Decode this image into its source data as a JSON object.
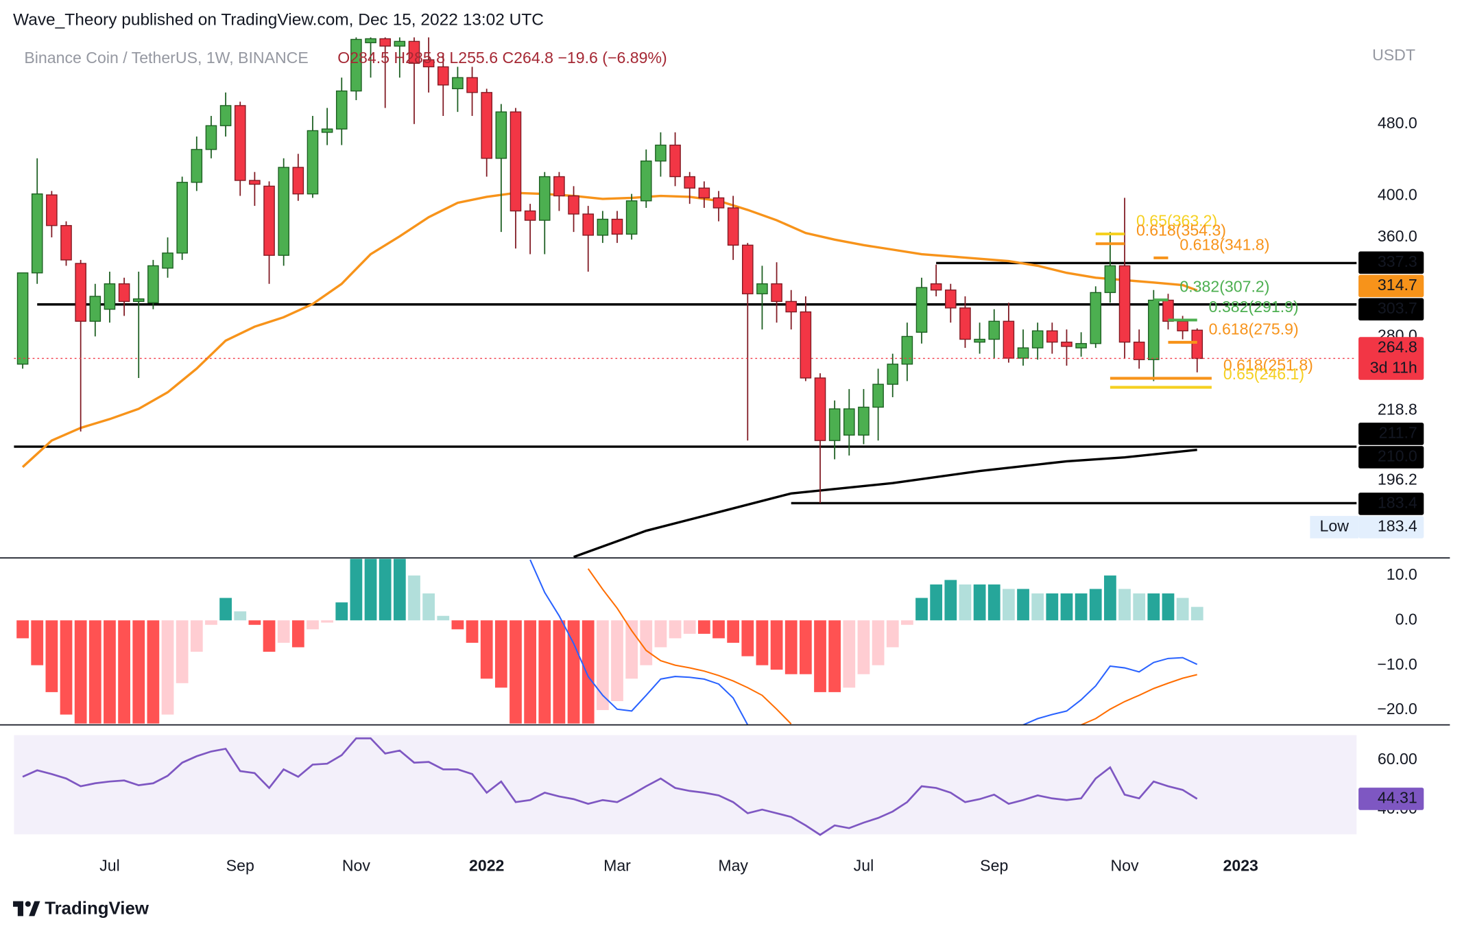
{
  "header": {
    "publisher": "Wave_Theory published on TradingView.com, Dec 15, 2022 13:02 UTC",
    "symbol": "Binance Coin / TetherUS, 1W, BINANCE",
    "ohlc": "O284.5  H285.8  L255.6  C264.8  −19.6 (−6.89%)",
    "currency": "USDT",
    "footer": "TradingView"
  },
  "chart_data": [
    {
      "type": "candlestick",
      "log": true,
      "xlim": [
        -0.6,
        92
      ],
      "xticks": [
        {
          "value": 6,
          "label": "Jul"
        },
        {
          "value": 15,
          "label": "Sep"
        },
        {
          "value": 23,
          "label": "Nov"
        },
        {
          "value": 32,
          "label": "2022"
        },
        {
          "value": 41,
          "label": "Mar"
        },
        {
          "value": 49,
          "label": "May"
        },
        {
          "value": 58,
          "label": "Jul"
        },
        {
          "value": 67,
          "label": "Sep"
        },
        {
          "value": 76,
          "label": "Nov"
        },
        {
          "value": 84,
          "label": "2023"
        }
      ],
      "ylim": [
        160,
        598
      ],
      "yticks": [
        {
          "value": 480,
          "label": "480.0"
        },
        {
          "value": 400,
          "label": "400.0"
        },
        {
          "value": 360,
          "label": "360.0"
        },
        {
          "value": 280,
          "label": "280.0"
        }
      ],
      "up_color": "#4caf50",
      "down_color": "#f23645",
      "open": [
        261,
        329,
        401,
        371,
        337,
        291,
        300,
        320,
        306,
        305,
        333,
        346,
        414,
        450,
        478,
        503,
        416,
        410,
        344,
        430,
        402,
        470,
        474,
        522,
        590,
        596,
        585,
        592,
        565,
        555,
        525,
        540,
        520,
        440,
        495,
        385,
        376,
        420,
        400,
        382,
        362,
        377,
        363,
        395,
        437,
        455,
        420,
        408,
        398,
        388,
        353,
        312,
        320,
        306,
        298,
        252,
        215,
        218,
        218,
        234,
        248,
        261,
        283,
        320,
        315,
        301,
        276,
        278,
        291,
        265,
        272,
        284,
        276,
        272,
        275,
        313,
        335,
        276,
        264,
        307,
        291,
        284.5
      ],
      "high": [
        329,
        440,
        405,
        375,
        340,
        320,
        330,
        325,
        330,
        340,
        360,
        420,
        465,
        490,
        520,
        508,
        425,
        415,
        440,
        445,
        490,
        500,
        540,
        598,
        598,
        598,
        598,
        598,
        598,
        575,
        555,
        555,
        525,
        505,
        500,
        392,
        425,
        425,
        410,
        390,
        385,
        385,
        402,
        450,
        470,
        470,
        425,
        415,
        405,
        400,
        355,
        335,
        338,
        315,
        310,
        255,
        238,
        245,
        245,
        258,
        268,
        290,
        325,
        336,
        320,
        310,
        290,
        300,
        305,
        285,
        290,
        290,
        285,
        283,
        318,
        365,
        398,
        285,
        315,
        312,
        295,
        285.8
      ],
      "low": [
        258,
        320,
        360,
        335,
        220,
        280,
        290,
        295,
        252,
        300,
        325,
        340,
        405,
        440,
        465,
        400,
        390,
        320,
        335,
        395,
        398,
        455,
        455,
        510,
        540,
        500,
        540,
        480,
        520,
        490,
        495,
        490,
        420,
        365,
        350,
        345,
        345,
        385,
        365,
        330,
        355,
        355,
        358,
        388,
        420,
        410,
        392,
        388,
        375,
        340,
        215,
        285,
        290,
        285,
        250,
        183.4,
        205,
        207,
        213,
        215,
        240,
        250,
        275,
        310,
        290,
        272,
        268,
        265,
        262,
        260,
        264,
        268,
        260,
        266,
        272,
        305,
        265,
        258,
        250,
        285,
        278,
        255.6
      ],
      "close": [
        329,
        402,
        371,
        340,
        291,
        310,
        320,
        306,
        308,
        335,
        346,
        414,
        450,
        478,
        503,
        416,
        412,
        344,
        430,
        402,
        472,
        474,
        522,
        595,
        596,
        585,
        592,
        560,
        555,
        530,
        540,
        520,
        440,
        495,
        385,
        376,
        420,
        400,
        382,
        362,
        377,
        363,
        395,
        437,
        455,
        420,
        408,
        398,
        388,
        353,
        312,
        320,
        306,
        298,
        252,
        215,
        233,
        233,
        234,
        248,
        261,
        280,
        317,
        315,
        301,
        278,
        278,
        291,
        265,
        272,
        284,
        276,
        273,
        275,
        313,
        335,
        276,
        264,
        307,
        291,
        284,
        264.8
      ],
      "ma": [
        {
          "color": "#f7931a",
          "x": [
            0,
            2,
            4,
            6,
            8,
            10,
            12,
            14,
            16,
            18,
            20,
            22,
            24,
            26,
            28,
            30,
            32,
            34,
            36,
            38,
            40,
            42,
            44,
            46,
            48,
            50,
            52,
            54,
            56,
            58,
            60,
            62,
            64,
            66,
            68,
            70,
            72,
            74,
            76,
            78,
            80,
            81
          ],
          "values": [
            201,
            215,
            222,
            227,
            233,
            243,
            258,
            277,
            287,
            294,
            304,
            320,
            345,
            361,
            379,
            393,
            399,
            403,
            402,
            400,
            397,
            398,
            400,
            399,
            395,
            386,
            376,
            364,
            358,
            353,
            349,
            345,
            343,
            341,
            339,
            335,
            329,
            325,
            323,
            321,
            319,
            314.7
          ]
        },
        {
          "color": "#000000",
          "x": [
            38,
            43,
            49,
            53,
            60,
            66,
            72,
            76,
            81
          ],
          "values": [
            160,
            171,
            181,
            188,
            193,
            199,
            204,
            206,
            210.0
          ]
        }
      ],
      "levels": [
        {
          "value": 337.3,
          "from": 63
        },
        {
          "value": 303.7,
          "from": 1
        },
        {
          "value": 211.7,
          "from": -0.6
        },
        {
          "value": 183.4,
          "from": 53
        }
      ],
      "annotations": [
        {
          "text": "0.65(363.2)",
          "value": 363.2,
          "from": 74,
          "to": 76,
          "color": "#f5d020"
        },
        {
          "text": "0.618(354.3)",
          "value": 354.3,
          "from": 74,
          "to": 76,
          "color": "#f7931a"
        },
        {
          "text": "0.618(341.8)",
          "value": 341.8,
          "from": 78,
          "to": 79,
          "color": "#f7931a"
        },
        {
          "text": "0.382(307.2)",
          "value": 307.2,
          "from": 78,
          "to": 79,
          "color": "#4caf50"
        },
        {
          "text": "0.382(291.9)",
          "value": 291.9,
          "from": 79,
          "to": 81,
          "color": "#4caf50"
        },
        {
          "text": "0.618(275.9)",
          "value": 275.9,
          "from": 79,
          "to": 81,
          "color": "#f7931a"
        },
        {
          "text": "0.618(251.8)",
          "value": 251.8,
          "from": 75,
          "to": 82,
          "color": "#f7931a"
        },
        {
          "text": "0.65(246.1)",
          "value": 246.1,
          "from": 75,
          "to": 82,
          "color": "#f5d020"
        }
      ],
      "price_labels": [
        {
          "value": 337.3,
          "label": "337.3",
          "color": "#000000",
          "text_color": "#ffffff"
        },
        {
          "value": 314.7,
          "label": "314.7",
          "color": "#f7931a",
          "text_color": "#ffffff"
        },
        {
          "value": 303.7,
          "label": "303.7",
          "color": "#000000",
          "text_color": "#ffffff"
        },
        {
          "value": 264.8,
          "label": "264.8",
          "sub": "3d 11h",
          "color": "#f23645",
          "text_color": "#ffffff"
        },
        {
          "value": 218.8,
          "label": "218.8",
          "text_color": "#131722"
        },
        {
          "value": 211.7,
          "label": "211.7",
          "color": "#000000",
          "text_color": "#ffffff"
        },
        {
          "value": 210.0,
          "label": "210.0",
          "color": "#000000",
          "text_color": "#ffffff"
        },
        {
          "value": 196.2,
          "label": "196.2",
          "text_color": "#131722"
        },
        {
          "value": 183.4,
          "label": "183.4",
          "color": "#000000",
          "text_color": "#ffffff"
        },
        {
          "value": 183.4,
          "label": "183.4",
          "prefix": "Low",
          "color": "#e3effd",
          "text_color": "#131722"
        }
      ]
    },
    {
      "type": "macd",
      "ylim": [
        -23.3,
        13.5
      ],
      "yticks": [
        {
          "value": 10,
          "label": "10.0"
        },
        {
          "value": 0,
          "label": "0.0"
        },
        {
          "value": -10,
          "label": "−10.0"
        },
        {
          "value": -20,
          "label": "−20.0"
        }
      ],
      "hist_colors": [
        "#26a69a",
        "#b2dfdb",
        "#ff5252",
        "#ffcdd2"
      ],
      "histogram": [
        -4,
        -10,
        -16,
        -21,
        -23,
        -23,
        -23,
        -23,
        -23,
        -23,
        -21,
        -14,
        -7,
        -1,
        5,
        2,
        -1,
        -7,
        -5,
        -6,
        -2,
        -0.5,
        4,
        14,
        14,
        14,
        14,
        10,
        6,
        1,
        -2,
        -5,
        -13,
        -15,
        -23,
        -23,
        -23,
        -23,
        -23,
        -23,
        -20,
        -18,
        -13,
        -10,
        -6,
        -4,
        -3,
        -3,
        -4,
        -5,
        -8,
        -10,
        -11,
        -12,
        -12,
        -16,
        -16,
        -15,
        -12,
        -10,
        -6,
        -1,
        5,
        8,
        9,
        8,
        8,
        8,
        7,
        7,
        6,
        6,
        6,
        6,
        7,
        10,
        7,
        6,
        6,
        6,
        5,
        3
      ],
      "series": [
        {
          "color": "#2962ff",
          "values": [
            null,
            null,
            null,
            null,
            null,
            null,
            null,
            null,
            null,
            null,
            null,
            null,
            null,
            null,
            null,
            null,
            null,
            null,
            null,
            null,
            null,
            null,
            null,
            null,
            null,
            null,
            null,
            null,
            null,
            null,
            null,
            null,
            null,
            null,
            null,
            13.5,
            6.2,
            1,
            -5.2,
            -12.5,
            -16.7,
            -19.8,
            -20.2,
            -16.7,
            -13.1,
            -12.5,
            -12.7,
            -13.1,
            -14.2,
            -17.3,
            -23.3,
            null,
            null,
            null,
            null,
            null,
            null,
            null,
            null,
            null,
            null,
            null,
            null,
            null,
            null,
            null,
            null,
            null,
            null,
            -23.3,
            -21.9,
            -21,
            -20.2,
            -17.7,
            -14.6,
            -10.2,
            -10.6,
            -11.5,
            -9.4,
            -8.5,
            -8.3,
            -9.8
          ]
        },
        {
          "color": "#ff6d00",
          "values": [
            null,
            null,
            null,
            null,
            null,
            null,
            null,
            null,
            null,
            null,
            null,
            null,
            null,
            null,
            null,
            null,
            null,
            null,
            null,
            null,
            null,
            null,
            null,
            null,
            null,
            null,
            null,
            null,
            null,
            null,
            null,
            null,
            null,
            null,
            null,
            null,
            null,
            null,
            null,
            11.5,
            6.9,
            2.7,
            -2.3,
            -6.7,
            -9,
            -10,
            -10.6,
            -11.3,
            -12.3,
            -13.5,
            -15,
            -16.7,
            -19.8,
            -23.1,
            null,
            null,
            null,
            null,
            null,
            null,
            null,
            null,
            null,
            null,
            null,
            null,
            null,
            null,
            null,
            null,
            null,
            null,
            null,
            -23.3,
            -21.9,
            -19.8,
            -18.1,
            -16.7,
            -15.2,
            -14,
            -12.9,
            -12.1
          ]
        }
      ]
    },
    {
      "type": "line",
      "ylim": [
        29,
        73
      ],
      "yticks": [
        {
          "value": 60,
          "label": "60.00"
        },
        {
          "value": 40,
          "label": "40.00"
        }
      ],
      "band": [
        30,
        70
      ],
      "band_color": "#f3f0fa",
      "color": "#7e57c2",
      "values": [
        53.2,
        55.8,
        54.3,
        52.5,
        49.4,
        50.6,
        51.3,
        51.7,
        49.8,
        50.6,
        53.6,
        58.9,
        61.5,
        63.4,
        64.5,
        55.5,
        54.7,
        48.7,
        56.2,
        53.2,
        58.1,
        58.5,
        61.9,
        68.7,
        68.7,
        62.6,
        63.8,
        58.9,
        59.2,
        56.2,
        56.2,
        54.3,
        46.8,
        51.3,
        43,
        43.8,
        46.8,
        45.3,
        44.2,
        42.3,
        43.8,
        43,
        46,
        49.4,
        52.5,
        48.7,
        47.5,
        46.8,
        45.7,
        43,
        38.5,
        40,
        38.5,
        37,
        33.6,
        29.8,
        33.6,
        32.5,
        34.7,
        36.6,
        39.2,
        43,
        49.4,
        48.7,
        46.8,
        43,
        44.2,
        46,
        42.3,
        43.8,
        45.7,
        44.5,
        43.8,
        44.5,
        52.5,
        57,
        46,
        44.5,
        51.3,
        49.4,
        47.9,
        44.31
      ]
    }
  ]
}
